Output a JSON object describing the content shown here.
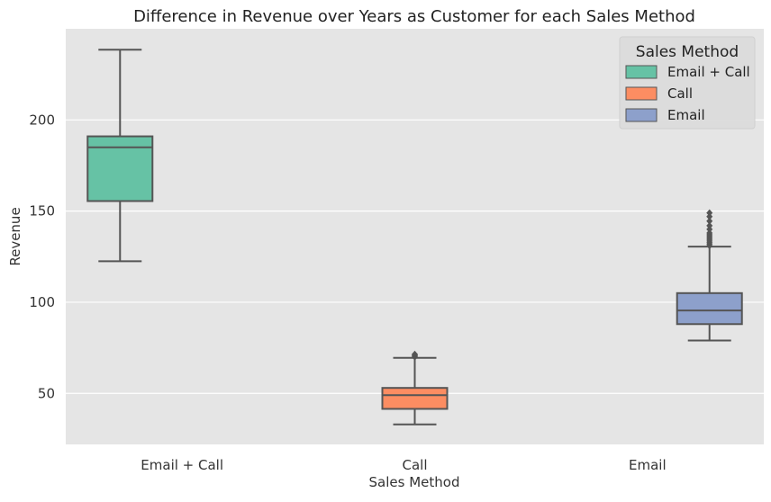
{
  "chart_data": {
    "type": "box",
    "title": "Difference in Revenue over Years as Customer for each Sales Method",
    "xlabel": "Sales Method",
    "ylabel": "Revenue",
    "ylim": [
      22,
      250
    ],
    "yticks": [
      50,
      100,
      150,
      200
    ],
    "categories": [
      "Email + Call",
      "Call",
      "Email"
    ],
    "series": [
      {
        "name": "Email + Call",
        "color": "#66c2a5",
        "whisker_low": 122.5,
        "q1": 155.5,
        "median": 185,
        "q3": 191,
        "whisker_high": 238.5,
        "outliers": []
      },
      {
        "name": "Call",
        "color": "#fc8d62",
        "whisker_low": 33,
        "q1": 41.5,
        "median": 49,
        "q3": 53,
        "whisker_high": 69.5,
        "outliers": [
          70,
          70.5,
          71,
          71.5
        ]
      },
      {
        "name": "Email",
        "color": "#8da0cb",
        "whisker_low": 79,
        "q1": 88,
        "median": 95.5,
        "q3": 105,
        "whisker_high": 130.5,
        "outliers": [
          131,
          132,
          133,
          134,
          135,
          136,
          137,
          138,
          140,
          142,
          144.5,
          147,
          149
        ]
      }
    ],
    "legend": {
      "title": "Sales Method",
      "position": "top-right",
      "entries": [
        "Email + Call",
        "Call",
        "Email"
      ]
    },
    "grid": true,
    "colors": {
      "background": "#e5e5e5",
      "grid": "#ffffff",
      "edge": "#555555",
      "text": "#333333"
    }
  }
}
